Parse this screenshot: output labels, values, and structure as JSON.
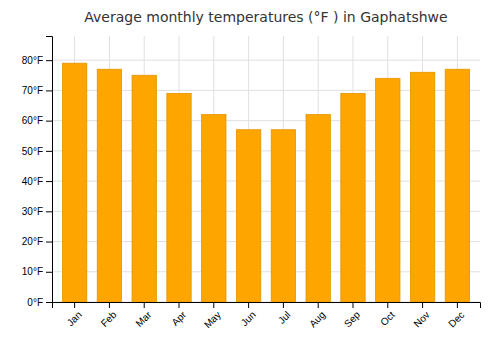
{
  "chart_data": {
    "type": "bar",
    "title": "Average monthly temperatures (°F ) in Gaphatshwe",
    "categories": [
      "Jan",
      "Feb",
      "Mar",
      "Apr",
      "May",
      "Jun",
      "Jul",
      "Aug",
      "Sep",
      "Oct",
      "Nov",
      "Dec"
    ],
    "values": [
      79,
      77,
      75,
      69,
      62,
      57,
      57,
      62,
      69,
      74,
      76,
      77
    ],
    "color": "#FFA500",
    "ylim": [
      0,
      88
    ],
    "yticks": [
      {
        "value": 0,
        "label": "0°F"
      },
      {
        "value": 10,
        "label": "10°F"
      },
      {
        "value": 20,
        "label": "20°F"
      },
      {
        "value": 30,
        "label": "30°F"
      },
      {
        "value": 40,
        "label": "40°F"
      },
      {
        "value": 50,
        "label": "50°F"
      },
      {
        "value": 60,
        "label": "60°F"
      },
      {
        "value": 70,
        "label": "70°F"
      },
      {
        "value": 80,
        "label": "80°F"
      }
    ],
    "grid": true
  }
}
